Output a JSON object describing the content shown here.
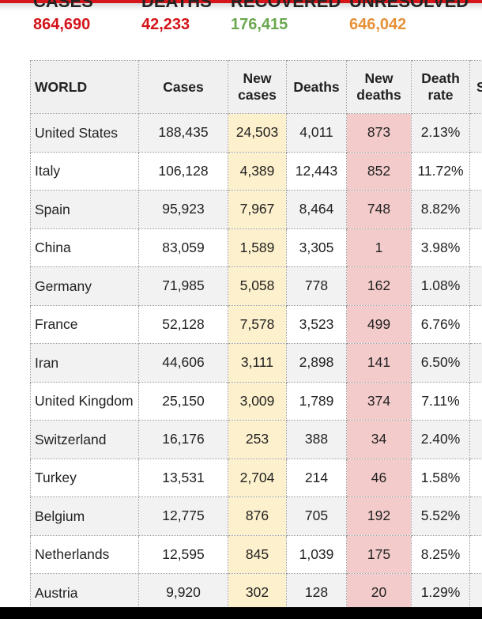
{
  "summary": [
    {
      "label": "CASES",
      "value": "864,690",
      "color": "#d4141b"
    },
    {
      "label": "DEATHS",
      "value": "42,233",
      "color": "#d4141b"
    },
    {
      "label": "RECOVERED",
      "value": "176,415",
      "color": "#6aa84f"
    },
    {
      "label": "UNRESOLVED",
      "value": "646,042",
      "color": "#e69138"
    }
  ],
  "table": {
    "headers": [
      "WORLD",
      "Cases",
      "New cases",
      "Deaths",
      "New deaths",
      "Death rate",
      "S C"
    ],
    "rows": [
      [
        "United States",
        "188,435",
        "24,503",
        "4,011",
        "873",
        "2.13%"
      ],
      [
        "Italy",
        "106,128",
        "4,389",
        "12,443",
        "852",
        "11.72%"
      ],
      [
        "Spain",
        "95,923",
        "7,967",
        "8,464",
        "748",
        "8.82%"
      ],
      [
        "China",
        "83,059",
        "1,589",
        "3,305",
        "1",
        "3.98%"
      ],
      [
        "Germany",
        "71,985",
        "5,058",
        "778",
        "162",
        "1.08%"
      ],
      [
        "France",
        "52,128",
        "7,578",
        "3,523",
        "499",
        "6.76%"
      ],
      [
        "Iran",
        "44,606",
        "3,111",
        "2,898",
        "141",
        "6.50%"
      ],
      [
        "United Kingdom",
        "25,150",
        "3,009",
        "1,789",
        "374",
        "7.11%"
      ],
      [
        "Switzerland",
        "16,176",
        "253",
        "388",
        "34",
        "2.40%"
      ],
      [
        "Turkey",
        "13,531",
        "2,704",
        "214",
        "46",
        "1.58%"
      ],
      [
        "Belgium",
        "12,775",
        "876",
        "705",
        "192",
        "5.52%"
      ],
      [
        "Netherlands",
        "12,595",
        "845",
        "1,039",
        "175",
        "8.25%"
      ],
      [
        "Austria",
        "9,920",
        "302",
        "128",
        "20",
        "1.29%"
      ]
    ]
  }
}
